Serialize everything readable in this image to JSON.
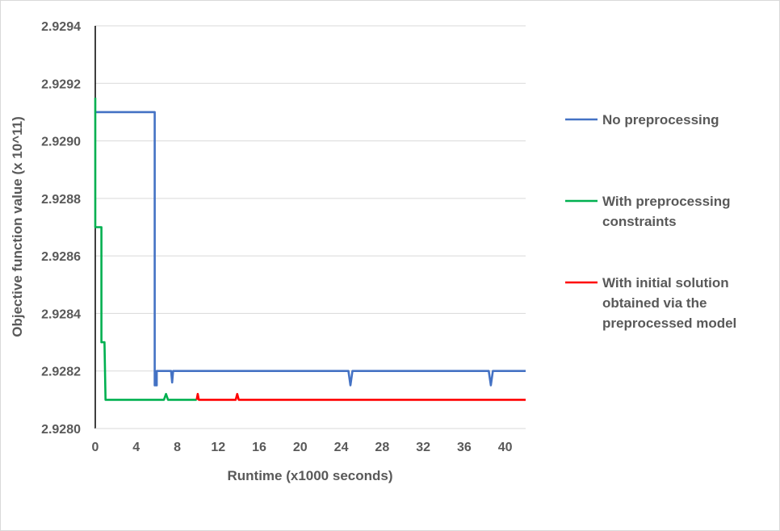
{
  "chart_data": {
    "type": "line",
    "title": "",
    "xlabel": "Runtime (x1000 seconds)",
    "ylabel": "Objective function value (x 10^11)",
    "xlim": [
      0,
      42
    ],
    "ylim": [
      2.928,
      2.9294
    ],
    "x_ticks": [
      "0",
      "4",
      "8",
      "12",
      "16",
      "20",
      "24",
      "28",
      "32",
      "36",
      "40"
    ],
    "x_tick_values": [
      0,
      4,
      8,
      12,
      16,
      20,
      24,
      28,
      32,
      36,
      40
    ],
    "y_ticks": [
      "2.9280",
      "2.9282",
      "2.9284",
      "2.9286",
      "2.9288",
      "2.9290",
      "2.9292",
      "2.9294"
    ],
    "y_tick_values": [
      2.928,
      2.9282,
      2.9284,
      2.9286,
      2.9288,
      2.929,
      2.9292,
      2.9294
    ],
    "grid": "horizontal",
    "legend_position": "right",
    "series": [
      {
        "name": "No preprocessing",
        "color": "#4472c4",
        "points": [
          [
            0.05,
            2.9291
          ],
          [
            5.8,
            2.9291
          ],
          [
            5.8,
            2.92815
          ],
          [
            6.0,
            2.92815
          ],
          [
            6.0,
            2.9282
          ],
          [
            7.4,
            2.9282
          ],
          [
            7.5,
            2.92816
          ],
          [
            7.6,
            2.9282
          ],
          [
            24.7,
            2.9282
          ],
          [
            24.9,
            2.92815
          ],
          [
            25.1,
            2.9282
          ],
          [
            38.4,
            2.9282
          ],
          [
            38.6,
            2.92815
          ],
          [
            38.8,
            2.9282
          ],
          [
            42,
            2.9282
          ]
        ]
      },
      {
        "name": [
          "With preprocessing",
          "constraints"
        ],
        "color": "#00b050",
        "points": [
          [
            0,
            2.92915
          ],
          [
            0,
            2.9287
          ],
          [
            0.6,
            2.9287
          ],
          [
            0.6,
            2.9283
          ],
          [
            0.9,
            2.9283
          ],
          [
            1.0,
            2.9281
          ],
          [
            6.7,
            2.9281
          ],
          [
            6.9,
            2.92812
          ],
          [
            7.1,
            2.9281
          ],
          [
            9.9,
            2.9281
          ]
        ]
      },
      {
        "name": [
          "With initial solution",
          "obtained via the",
          "preprocessed model"
        ],
        "color": "#ff0000",
        "points": [
          [
            9.9,
            2.9281
          ],
          [
            10.0,
            2.92812
          ],
          [
            10.1,
            2.9281
          ],
          [
            13.7,
            2.9281
          ],
          [
            13.85,
            2.92812
          ],
          [
            14.0,
            2.9281
          ],
          [
            42,
            2.9281
          ]
        ]
      }
    ]
  }
}
